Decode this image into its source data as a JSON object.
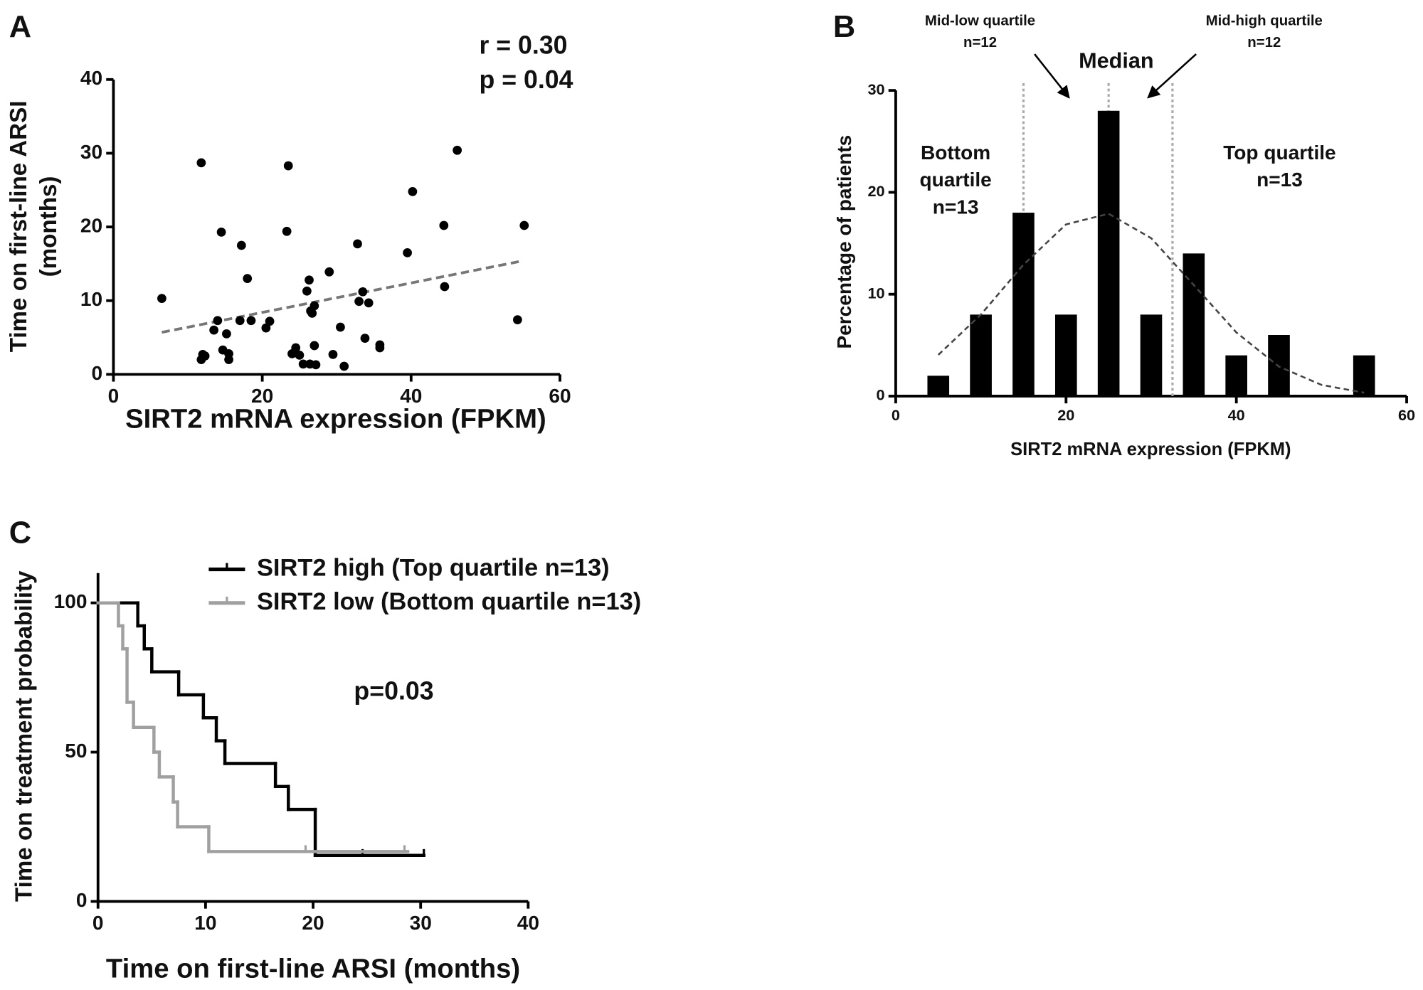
{
  "chart_data": [
    {
      "type": "scatter",
      "panel": "A",
      "x_label": "SIRT2 mRNA expression (FPKM)",
      "y_label": [
        "Time on first-line ARSI",
        "(months)"
      ],
      "annotations": [
        "r = 0.30",
        "p = 0.04"
      ],
      "color": "#000000",
      "x": [
        6.5,
        11.8,
        11.8,
        12,
        12.3,
        13.5,
        14,
        14.5,
        14.7,
        15.2,
        15.5,
        15.5,
        17,
        17.2,
        18,
        18.5,
        20.5,
        21,
        23.3,
        23.5,
        24,
        24.5,
        25,
        25.5,
        26,
        26.3,
        26.4,
        26.5,
        26.7,
        27,
        27,
        27.2,
        29,
        29.5,
        30.5,
        31,
        32.8,
        33,
        33.5,
        33.8,
        34.3,
        35.8,
        35.8,
        39.5,
        40.2,
        44.4,
        44.5,
        46.2,
        54.3,
        55.2
      ],
      "y": [
        10.3,
        28.7,
        2.0,
        2.7,
        2.5,
        6,
        7.3,
        19.3,
        3.3,
        5.5,
        2.8,
        2,
        7.3,
        17.5,
        13,
        7.3,
        6.3,
        7.2,
        19.4,
        28.3,
        2.8,
        3.6,
        2.6,
        1.4,
        11.3,
        12.8,
        1.4,
        8.6,
        8.3,
        9.3,
        3.9,
        1.3,
        13.9,
        2.7,
        6.4,
        1.1,
        17.7,
        9.9,
        11.2,
        4.9,
        9.7,
        4.0,
        3.6,
        16.5,
        24.8,
        20.2,
        11.9,
        30.4,
        7.4,
        20.2
      ],
      "trend_line": {
        "x": [
          6.5,
          55
        ],
        "y": [
          5.7,
          15.4
        ],
        "color": "#777777"
      },
      "xlim": [
        0,
        60
      ],
      "xticks": [
        0,
        20,
        40,
        60
      ],
      "ylim": [
        0,
        40
      ],
      "yticks": [
        0,
        10,
        20,
        30,
        40
      ]
    },
    {
      "type": "bar",
      "panel": "B",
      "x_label": "SIRT2 mRNA expression (FPKM)",
      "y_label": [
        "Percentage of patients"
      ],
      "x": [
        5,
        10,
        15,
        20,
        25,
        30,
        35,
        40,
        45,
        50,
        55
      ],
      "values": [
        2,
        8,
        18,
        8,
        28,
        8,
        14,
        4,
        6,
        0,
        4
      ],
      "color": "#000000",
      "fit_curve": {
        "x": [
          5,
          10,
          15,
          20,
          25,
          30,
          35,
          40,
          45,
          50,
          55
        ],
        "y": [
          4.05,
          8.0,
          12.9,
          16.85,
          17.9,
          15.5,
          10.9,
          6.25,
          2.9,
          1.1,
          0.34
        ],
        "color": "#444444"
      },
      "reference_lines_x": [
        15,
        25,
        32.5
      ],
      "reference_color": "#aaaaaa",
      "annotations": {
        "mid_low": [
          "Mid-low quartile",
          "n=12"
        ],
        "mid_high": [
          "Mid-high  quartile",
          "n=12"
        ],
        "median": [
          "Median"
        ],
        "bottom": [
          "Bottom",
          "quartile",
          "n=13"
        ],
        "top": [
          "Top quartile",
          "n=13"
        ]
      },
      "xlim": [
        0,
        60
      ],
      "xticks": [
        0,
        20,
        40,
        60
      ],
      "ylim": [
        0,
        30
      ],
      "yticks": [
        0,
        10,
        20,
        30
      ]
    },
    {
      "type": "step",
      "panel": "C",
      "x_label": "Time on first-line ARSI (months)",
      "y_label": [
        "Time on treatment probability"
      ],
      "annotations": [
        "p=0.03"
      ],
      "series": [
        {
          "name": "SIRT2 high (Top quartile n=13)",
          "color": "#000000",
          "x": [
            0,
            3.7,
            4.3,
            5.0,
            7.5,
            9.8,
            11.0,
            11.8,
            16.5,
            17.7,
            20.2,
            30.3
          ],
          "values": [
            100,
            92.3,
            84.6,
            76.9,
            69.2,
            61.5,
            53.8,
            46.2,
            38.5,
            30.8,
            15.4,
            15.4
          ],
          "censored": [
            24.6,
            30.3
          ]
        },
        {
          "name": "SIRT2 low (Bottom quartile n=13)",
          "color": "#a0a0a0",
          "x": [
            0,
            1.9,
            2.3,
            2.7,
            3.3,
            5.2,
            5.7,
            7.0,
            7.4,
            10.3,
            28.8
          ],
          "values": [
            100,
            92.3,
            84.6,
            66.7,
            58.3,
            50,
            41.7,
            33.3,
            25,
            16.7,
            16.7
          ],
          "censored": [
            19.3,
            28.5
          ]
        }
      ],
      "xlim": [
        0,
        40
      ],
      "xticks": [
        0,
        10,
        20,
        30,
        40
      ],
      "ylim": [
        0,
        110
      ],
      "yticks": [
        0,
        50,
        100
      ]
    }
  ]
}
